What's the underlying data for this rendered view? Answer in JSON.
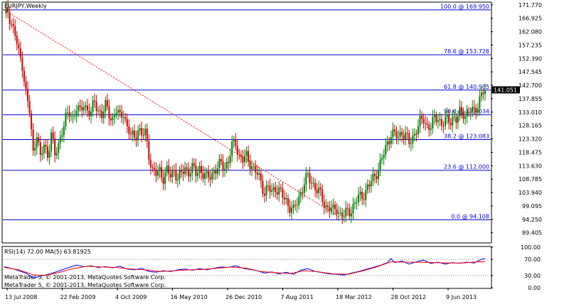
{
  "header": {
    "symbol_label": "EURJPY,Weekly"
  },
  "colors": {
    "background": "#ffffff",
    "frame": "#000000",
    "bull": "#008000",
    "bear": "#cc0000",
    "fib": "#0000cc",
    "trend": "#ff0000",
    "rsi": "#0000ff",
    "ma": "#ff0000",
    "level": "#808080"
  },
  "chart_data": [
    {
      "type": "candlestick",
      "title": "EURJPY,Weekly",
      "ylim": [
        86.0,
        172.5
      ],
      "y_ticks": [
        "171.770",
        "166.925",
        "162.080",
        "157.235",
        "152.390",
        "147.545",
        "142.700",
        "137.855",
        "133.010",
        "128.165",
        "123.320",
        "118.475",
        "113.630",
        "108.785",
        "103.940",
        "99.095",
        "94.250",
        "89.405"
      ],
      "current_price": "141.051",
      "x_tick_labels": [
        "13 Jul 2008",
        "22 Feb 2009",
        "4 Oct 2009",
        "16 May 2010",
        "26 Dec 2010",
        "7 Aug 2011",
        "18 Mar 2012",
        "28 Oct 2012",
        "9 Jun 2013"
      ],
      "series": [
        {
          "points": [
            [
              0,
              167.5
            ],
            [
              2,
              169.8
            ],
            [
              4,
              165.0
            ],
            [
              6,
              161.0
            ],
            [
              8,
              154.0
            ],
            [
              10,
              150.5
            ],
            [
              12,
              140.0
            ],
            [
              14,
              133.0
            ],
            [
              16,
              118.0
            ],
            [
              18,
              126.0
            ],
            [
              20,
              116.0
            ],
            [
              22,
              121.0
            ],
            [
              24,
              117.5
            ],
            [
              26,
              125.5
            ],
            [
              28,
              117.0
            ],
            [
              30,
              121.0
            ],
            [
              32,
              127.0
            ],
            [
              34,
              130.5
            ],
            [
              36,
              132.5
            ],
            [
              38,
              131.0
            ],
            [
              40,
              135.0
            ],
            [
              42,
              132.5
            ],
            [
              44,
              136.0
            ],
            [
              46,
              134.0
            ],
            [
              48,
              132.5
            ],
            [
              50,
              136.5
            ],
            [
              52,
              134.0
            ],
            [
              54,
              132.0
            ],
            [
              56,
              135.0
            ],
            [
              58,
              132.5
            ],
            [
              60,
              130.5
            ],
            [
              62,
              133.5
            ],
            [
              64,
              131.0
            ],
            [
              66,
              133.5
            ],
            [
              68,
              127.0
            ],
            [
              70,
              124.5
            ],
            [
              72,
              124.0
            ],
            [
              74,
              127.0
            ],
            [
              76,
              124.5
            ],
            [
              78,
              125.5
            ],
            [
              80,
              118.0
            ],
            [
              82,
              111.5
            ],
            [
              84,
              110.5
            ],
            [
              86,
              112.0
            ],
            [
              88,
              109.5
            ],
            [
              90,
              111.5
            ],
            [
              92,
              110.0
            ],
            [
              94,
              112.5
            ],
            [
              96,
              109.0
            ],
            [
              98,
              110.5
            ],
            [
              100,
              113.0
            ],
            [
              102,
              111.5
            ],
            [
              104,
              112.5
            ],
            [
              106,
              111.0
            ],
            [
              108,
              113.0
            ],
            [
              110,
              110.5
            ],
            [
              112,
              109.0
            ],
            [
              114,
              110.5
            ],
            [
              116,
              111.5
            ],
            [
              118,
              112.5
            ],
            [
              120,
              114.5
            ],
            [
              122,
              113.5
            ],
            [
              124,
              115.0
            ],
            [
              126,
              120.5
            ],
            [
              128,
              122.5
            ],
            [
              130,
              117.0
            ],
            [
              132,
              115.5
            ],
            [
              134,
              117.0
            ],
            [
              136,
              115.0
            ],
            [
              138,
              112.0
            ],
            [
              140,
              110.5
            ],
            [
              142,
              108.0
            ],
            [
              144,
              104.0
            ],
            [
              146,
              105.5
            ],
            [
              148,
              104.0
            ],
            [
              150,
              106.0
            ],
            [
              152,
              104.5
            ],
            [
              154,
              102.5
            ],
            [
              156,
              101.0
            ],
            [
              158,
              99.0
            ],
            [
              160,
              97.0
            ],
            [
              162,
              100.5
            ],
            [
              164,
              104.0
            ],
            [
              166,
              107.5
            ],
            [
              168,
              109.5
            ],
            [
              170,
              108.0
            ],
            [
              172,
              106.0
            ],
            [
              174,
              104.0
            ],
            [
              176,
              101.5
            ],
            [
              178,
              99.0
            ],
            [
              180,
              98.5
            ],
            [
              182,
              97.0
            ],
            [
              184,
              98.5
            ],
            [
              186,
              96.0
            ],
            [
              188,
              95.5
            ],
            [
              190,
              97.0
            ],
            [
              192,
              98.0
            ],
            [
              194,
              100.0
            ],
            [
              196,
              102.0
            ],
            [
              198,
              103.0
            ],
            [
              200,
              104.5
            ],
            [
              202,
              106.5
            ],
            [
              204,
              109.0
            ],
            [
              206,
              111.5
            ],
            [
              208,
              114.0
            ],
            [
              210,
              118.0
            ],
            [
              212,
              122.0
            ],
            [
              214,
              125.5
            ],
            [
              216,
              124.5
            ],
            [
              218,
              124.0
            ],
            [
              220,
              126.0
            ],
            [
              222,
              124.5
            ],
            [
              224,
              121.5
            ],
            [
              226,
              124.0
            ],
            [
              228,
              127.0
            ],
            [
              230,
              129.0
            ],
            [
              232,
              130.5
            ],
            [
              234,
              128.0
            ],
            [
              236,
              128.0
            ],
            [
              238,
              130.0
            ],
            [
              240,
              131.5
            ],
            [
              242,
              128.5
            ],
            [
              244,
              130.0
            ],
            [
              246,
              129.5
            ],
            [
              248,
              131.5
            ],
            [
              250,
              130.0
            ],
            [
              252,
              132.5
            ],
            [
              254,
              133.0
            ],
            [
              256,
              132.0
            ],
            [
              258,
              133.5
            ],
            [
              260,
              133.0
            ],
            [
              262,
              136.5
            ],
            [
              264,
              139.0
            ],
            [
              266,
              141.05
            ]
          ]
        }
      ],
      "horizontal_levels": [
        {
          "label": "100.0 @ 169.950",
          "value": 169.95
        },
        {
          "label": "78.6 @ 153.728",
          "value": 153.728
        },
        {
          "label": "61.8 @ 140.985",
          "value": 140.985
        },
        {
          "label": "50.0 @ 132.034",
          "value": 132.034
        },
        {
          "label": "38.2 @ 123.083",
          "value": 123.083
        },
        {
          "label": "23.6 @ 112.000",
          "value": 112.0
        },
        {
          "label": "0.0 @ 94.108",
          "value": 94.108
        }
      ],
      "trend_line": {
        "from": [
          0,
          169.95
        ],
        "to": [
          188,
          94.108
        ]
      }
    },
    {
      "type": "line",
      "title": "RSI(14) 72.00 MA(5) 63.81925",
      "ylim": [
        0,
        100
      ],
      "y_ticks": [
        "100.00",
        "70.00",
        "30.00",
        "0.00"
      ],
      "levels": [
        70,
        30
      ],
      "series": [
        {
          "name": "RSI(14)",
          "points": [
            [
              0,
              52
            ],
            [
              6,
              45
            ],
            [
              12,
              36
            ],
            [
              16,
              24
            ],
            [
              20,
              28
            ],
            [
              26,
              35
            ],
            [
              32,
              44
            ],
            [
              36,
              50
            ],
            [
              40,
              56
            ],
            [
              44,
              52
            ],
            [
              48,
              54
            ],
            [
              52,
              50
            ],
            [
              56,
              52
            ],
            [
              60,
              49
            ],
            [
              64,
              53
            ],
            [
              68,
              46
            ],
            [
              72,
              44
            ],
            [
              76,
              48
            ],
            [
              80,
              40
            ],
            [
              84,
              38
            ],
            [
              88,
              42
            ],
            [
              92,
              40
            ],
            [
              96,
              44
            ],
            [
              100,
              46
            ],
            [
              104,
              43
            ],
            [
              108,
              47
            ],
            [
              112,
              44
            ],
            [
              116,
              48
            ],
            [
              120,
              51
            ],
            [
              124,
              50
            ],
            [
              128,
              54
            ],
            [
              132,
              48
            ],
            [
              136,
              45
            ],
            [
              140,
              42
            ],
            [
              144,
              36
            ],
            [
              148,
              39
            ],
            [
              152,
              34
            ],
            [
              156,
              38
            ],
            [
              160,
              33
            ],
            [
              164,
              43
            ],
            [
              168,
              47
            ],
            [
              172,
              40
            ],
            [
              176,
              37
            ],
            [
              180,
              34
            ],
            [
              184,
              33
            ],
            [
              188,
              31
            ],
            [
              192,
              36
            ],
            [
              196,
              40
            ],
            [
              200,
              45
            ],
            [
              204,
              50
            ],
            [
              208,
              55
            ],
            [
              212,
              62
            ],
            [
              214,
              72
            ],
            [
              216,
              62
            ],
            [
              220,
              66
            ],
            [
              224,
              58
            ],
            [
              228,
              64
            ],
            [
              232,
              68
            ],
            [
              236,
              60
            ],
            [
              240,
              63
            ],
            [
              244,
              58
            ],
            [
              248,
              62
            ],
            [
              252,
              60
            ],
            [
              256,
              63
            ],
            [
              260,
              61
            ],
            [
              264,
              70
            ],
            [
              266,
              72
            ]
          ]
        },
        {
          "name": "MA(5)",
          "points": [
            [
              0,
              50
            ],
            [
              8,
              44
            ],
            [
              16,
              32
            ],
            [
              22,
              30
            ],
            [
              30,
              37
            ],
            [
              38,
              47
            ],
            [
              46,
              53
            ],
            [
              54,
              51
            ],
            [
              62,
              50
            ],
            [
              70,
              46
            ],
            [
              78,
              44
            ],
            [
              86,
              40
            ],
            [
              94,
              42
            ],
            [
              102,
              44
            ],
            [
              110,
              45
            ],
            [
              118,
              48
            ],
            [
              126,
              51
            ],
            [
              134,
              48
            ],
            [
              142,
              40
            ],
            [
              150,
              37
            ],
            [
              158,
              35
            ],
            [
              166,
              42
            ],
            [
              174,
              39
            ],
            [
              182,
              34
            ],
            [
              190,
              33
            ],
            [
              198,
              41
            ],
            [
              206,
              51
            ],
            [
              214,
              64
            ],
            [
              222,
              63
            ],
            [
              230,
              63
            ],
            [
              238,
              62
            ],
            [
              246,
              61
            ],
            [
              254,
              61
            ],
            [
              262,
              64
            ],
            [
              266,
              63.8
            ]
          ]
        }
      ]
    }
  ],
  "footer": {
    "watermark_1": "MetaTrader 5, © 2001-2013, MetaQuotes Software Corp.",
    "watermark_2": "MetaTrader 5, © 2001-2013, MetaQuotes Software Corp."
  }
}
